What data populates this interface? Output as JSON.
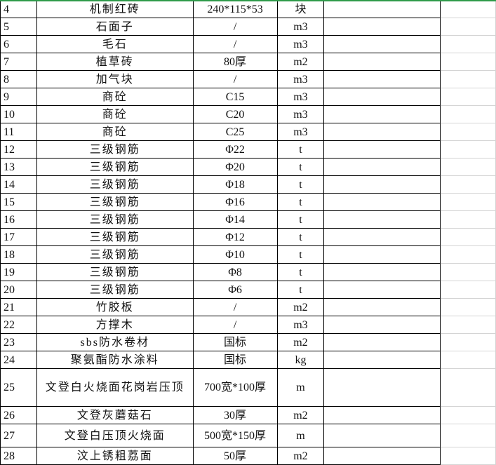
{
  "rows": [
    {
      "no": "4",
      "name": "机制红砖",
      "spec": "240*115*53",
      "unit": "块"
    },
    {
      "no": "5",
      "name": "石面子",
      "spec": "/",
      "unit": "m3"
    },
    {
      "no": "6",
      "name": "毛石",
      "spec": "/",
      "unit": "m3"
    },
    {
      "no": "7",
      "name": "植草砖",
      "spec": "80厚",
      "unit": "m2"
    },
    {
      "no": "8",
      "name": "加气块",
      "spec": "/",
      "unit": "m3"
    },
    {
      "no": "9",
      "name": "商砼",
      "spec": "C15",
      "unit": "m3"
    },
    {
      "no": "10",
      "name": "商砼",
      "spec": "C20",
      "unit": "m3"
    },
    {
      "no": "11",
      "name": "商砼",
      "spec": "C25",
      "unit": "m3"
    },
    {
      "no": "12",
      "name": "三级钢筋",
      "spec": "Φ22",
      "unit": "t"
    },
    {
      "no": "13",
      "name": "三级钢筋",
      "spec": "Φ20",
      "unit": "t"
    },
    {
      "no": "14",
      "name": "三级钢筋",
      "spec": "Φ18",
      "unit": "t"
    },
    {
      "no": "15",
      "name": "三级钢筋",
      "spec": "Φ16",
      "unit": "t"
    },
    {
      "no": "16",
      "name": "三级钢筋",
      "spec": "Φ14",
      "unit": "t"
    },
    {
      "no": "17",
      "name": "三级钢筋",
      "spec": "Φ12",
      "unit": "t"
    },
    {
      "no": "18",
      "name": "三级钢筋",
      "spec": "Φ10",
      "unit": "t"
    },
    {
      "no": "19",
      "name": "三级钢筋",
      "spec": "Φ8",
      "unit": "t"
    },
    {
      "no": "20",
      "name": "三级钢筋",
      "spec": "Φ6",
      "unit": "t"
    },
    {
      "no": "21",
      "name": "竹胶板",
      "spec": "/",
      "unit": "m2"
    },
    {
      "no": "22",
      "name": "方撑木",
      "spec": "/",
      "unit": "m3"
    },
    {
      "no": "23",
      "name": "sbs防水卷材",
      "spec": "国标",
      "unit": "m2"
    },
    {
      "no": "24",
      "name": "聚氨酯防水涂料",
      "spec": "国标",
      "unit": "kg"
    },
    {
      "no": "25",
      "name": "文登白火烧面花岗岩压顶",
      "spec": "700宽*100厚",
      "unit": "m"
    },
    {
      "no": "26",
      "name": "文登灰蘑菇石",
      "spec": "30厚",
      "unit": "m2"
    },
    {
      "no": "27",
      "name": "文登白压顶火烧面",
      "spec": "500宽*150厚",
      "unit": "m"
    },
    {
      "no": "28",
      "name": "汶上锈粗荔面",
      "spec": "50厚",
      "unit": "m2"
    }
  ]
}
